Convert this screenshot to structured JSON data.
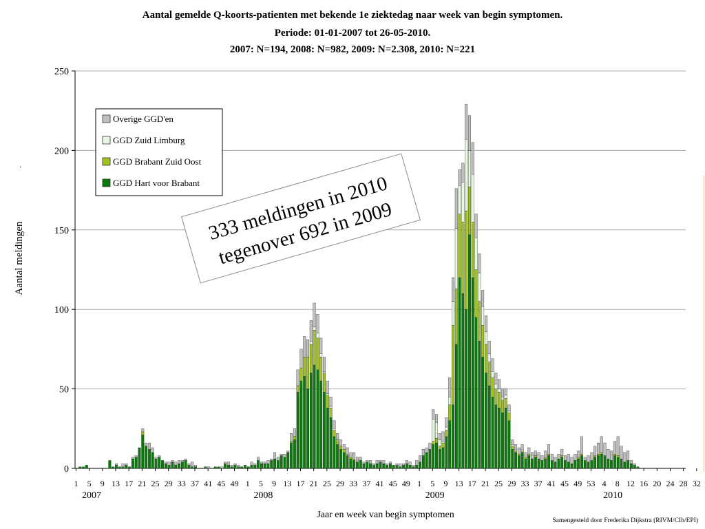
{
  "title_lines": [
    "Aantal gemelde Q-koorts-patienten met bekende 1e ziektedag naar week van begin symptomen.",
    "Periode: 01-01-2007 tot 26-05-2010.",
    "2007: N=194, 2008: N=982, 2009: N=2.308, 2010: N=221"
  ],
  "credit": "Samengesteld door Frederika Dijkstra (RIVM/CIb/EPI)",
  "annotation": [
    "333 meldingen in 2010",
    "tegenover 692 in 2009"
  ],
  "colors": {
    "hart_voor_brabant": "#0a7a0a",
    "brabant_zuid_oost": "#9fc21e",
    "zuid_limburg": "#e6f7e2",
    "overige": "#c0c0c0",
    "gridline": "#a9a9a9"
  },
  "chart_data": {
    "type": "bar",
    "stacked": true,
    "title": "Aantal gemelde Q-koorts-patienten met bekende 1e ziektedag naar week van begin symptomen.",
    "xlabel": "Jaar en week van begin symptomen",
    "ylabel": "Aantal meldingen",
    "ylim": [
      0,
      250
    ],
    "yticks": [
      0,
      50,
      100,
      150,
      200,
      250
    ],
    "grid": true,
    "legend_position": "top-left",
    "year_labels": [
      {
        "label": "2007",
        "week_index": 0
      },
      {
        "label": "2008",
        "week_index": 52
      },
      {
        "label": "2009",
        "week_index": 104
      },
      {
        "label": "2010",
        "week_index": 160
      }
    ],
    "week_tick_labels": [
      "1",
      "5",
      "9",
      "13",
      "17",
      "21",
      "25",
      "29",
      "33",
      "37",
      "41",
      "45",
      "49",
      "1",
      "5",
      "9",
      "13",
      "17",
      "21",
      "25",
      "29",
      "33",
      "37",
      "41",
      "45",
      "49",
      "1",
      "5",
      "9",
      "13",
      "17",
      "21",
      "25",
      "29",
      "33",
      "37",
      "41",
      "45",
      "49",
      "53",
      "4",
      "8",
      "12",
      "16",
      "20",
      "24",
      "28",
      "32"
    ],
    "series_names": [
      "GGD Hart voor Brabant",
      "GGD Brabant Zuid Oost",
      "GGD Zuid Limburg",
      "Overige GGD'en"
    ],
    "legend_order": [
      "Overige GGD'en",
      "GGD Zuid Limburg",
      "GGD Brabant Zuid Oost",
      "GGD Hart voor Brabant"
    ],
    "stacks": [
      [
        0,
        0,
        0,
        0
      ],
      [
        1,
        0,
        0,
        0
      ],
      [
        1,
        0,
        0,
        0
      ],
      [
        2,
        0,
        0,
        0
      ],
      [
        0,
        0,
        0,
        0
      ],
      [
        0,
        0,
        0,
        0
      ],
      [
        0,
        0,
        0,
        0
      ],
      [
        0,
        0,
        0,
        0
      ],
      [
        0,
        0,
        0,
        0
      ],
      [
        0,
        0,
        0,
        0
      ],
      [
        5,
        0,
        0,
        0
      ],
      [
        1,
        0,
        0,
        0
      ],
      [
        2,
        0,
        0,
        1
      ],
      [
        1,
        0,
        0,
        0
      ],
      [
        1,
        0,
        0,
        2
      ],
      [
        2,
        0,
        0,
        1
      ],
      [
        1,
        0,
        0,
        0
      ],
      [
        6,
        0,
        0,
        1
      ],
      [
        7,
        0,
        0,
        1
      ],
      [
        13,
        0,
        0,
        0
      ],
      [
        21,
        2,
        0,
        2
      ],
      [
        14,
        0,
        0,
        2
      ],
      [
        12,
        0,
        0,
        4
      ],
      [
        10,
        0,
        0,
        3
      ],
      [
        6,
        0,
        0,
        1
      ],
      [
        7,
        0,
        0,
        1
      ],
      [
        5,
        0,
        0,
        0
      ],
      [
        3,
        0,
        0,
        1
      ],
      [
        2,
        0,
        0,
        2
      ],
      [
        4,
        0,
        0,
        1
      ],
      [
        2,
        0,
        0,
        2
      ],
      [
        3,
        0,
        0,
        2
      ],
      [
        4,
        0,
        0,
        1
      ],
      [
        5,
        0,
        0,
        1
      ],
      [
        2,
        0,
        0,
        1
      ],
      [
        1,
        0,
        0,
        3
      ],
      [
        1,
        0,
        0,
        1
      ],
      [
        0,
        0,
        0,
        0
      ],
      [
        0,
        0,
        0,
        0
      ],
      [
        1,
        0,
        0,
        0
      ],
      [
        0,
        0,
        0,
        1
      ],
      [
        0,
        0,
        0,
        0
      ],
      [
        1,
        0,
        0,
        0
      ],
      [
        1,
        0,
        0,
        0
      ],
      [
        0,
        0,
        0,
        1
      ],
      [
        3,
        0,
        0,
        1
      ],
      [
        2,
        0,
        0,
        2
      ],
      [
        1,
        0,
        0,
        1
      ],
      [
        2,
        0,
        0,
        1
      ],
      [
        1,
        0,
        0,
        1
      ],
      [
        1,
        0,
        0,
        0
      ],
      [
        2,
        0,
        0,
        0
      ],
      [
        1,
        0,
        0,
        0
      ],
      [
        2,
        0,
        0,
        2
      ],
      [
        2,
        0,
        0,
        1
      ],
      [
        5,
        0,
        0,
        2
      ],
      [
        3,
        0,
        0,
        1
      ],
      [
        3,
        0,
        0,
        1
      ],
      [
        3,
        0,
        0,
        2
      ],
      [
        5,
        0,
        0,
        1
      ],
      [
        6,
        0,
        0,
        4
      ],
      [
        5,
        0,
        0,
        2
      ],
      [
        8,
        0,
        0,
        1
      ],
      [
        7,
        0,
        0,
        2
      ],
      [
        10,
        0,
        0,
        1
      ],
      [
        16,
        1,
        0,
        5
      ],
      [
        18,
        2,
        0,
        5
      ],
      [
        48,
        4,
        0,
        10
      ],
      [
        55,
        8,
        0,
        12
      ],
      [
        58,
        12,
        0,
        13
      ],
      [
        50,
        20,
        0,
        11
      ],
      [
        60,
        18,
        2,
        13
      ],
      [
        65,
        22,
        2,
        15
      ],
      [
        62,
        20,
        3,
        12
      ],
      [
        55,
        15,
        2,
        10
      ],
      [
        48,
        12,
        1,
        9
      ],
      [
        38,
        8,
        1,
        8
      ],
      [
        32,
        6,
        1,
        6
      ],
      [
        20,
        4,
        1,
        5
      ],
      [
        15,
        3,
        0,
        4
      ],
      [
        12,
        2,
        0,
        4
      ],
      [
        10,
        2,
        0,
        3
      ],
      [
        8,
        1,
        0,
        4
      ],
      [
        6,
        1,
        0,
        3
      ],
      [
        5,
        1,
        0,
        4
      ],
      [
        4,
        0,
        0,
        3
      ],
      [
        5,
        0,
        0,
        2
      ],
      [
        3,
        0,
        0,
        1
      ],
      [
        4,
        0,
        0,
        1
      ],
      [
        3,
        0,
        0,
        2
      ],
      [
        2,
        0,
        0,
        1
      ],
      [
        3,
        0,
        0,
        2
      ],
      [
        4,
        0,
        0,
        1
      ],
      [
        3,
        0,
        0,
        2
      ],
      [
        2,
        0,
        0,
        1
      ],
      [
        3,
        0,
        0,
        1
      ],
      [
        2,
        0,
        0,
        0
      ],
      [
        2,
        0,
        0,
        1
      ],
      [
        1,
        0,
        0,
        2
      ],
      [
        2,
        0,
        0,
        1
      ],
      [
        3,
        0,
        0,
        2
      ],
      [
        2,
        0,
        0,
        2
      ],
      [
        1,
        0,
        0,
        1
      ],
      [
        2,
        0,
        0,
        3
      ],
      [
        4,
        0,
        0,
        4
      ],
      [
        8,
        0,
        0,
        4
      ],
      [
        10,
        0,
        0,
        3
      ],
      [
        12,
        0,
        0,
        4
      ],
      [
        15,
        2,
        14,
        6
      ],
      [
        16,
        3,
        10,
        5
      ],
      [
        12,
        2,
        4,
        4
      ],
      [
        13,
        3,
        1,
        6
      ],
      [
        20,
        4,
        2,
        6
      ],
      [
        30,
        10,
        5,
        12
      ],
      [
        40,
        50,
        15,
        15
      ],
      [
        78,
        35,
        38,
        25
      ],
      [
        120,
        40,
        18,
        10
      ],
      [
        110,
        45,
        25,
        12
      ],
      [
        100,
        62,
        45,
        22
      ],
      [
        147,
        30,
        23,
        22
      ],
      [
        120,
        35,
        30,
        20
      ],
      [
        95,
        30,
        20,
        15
      ],
      [
        80,
        25,
        18,
        12
      ],
      [
        70,
        20,
        12,
        10
      ],
      [
        60,
        18,
        8,
        10
      ],
      [
        52,
        15,
        5,
        8
      ],
      [
        45,
        12,
        4,
        8
      ],
      [
        40,
        10,
        3,
        7
      ],
      [
        38,
        10,
        2,
        6
      ],
      [
        35,
        8,
        2,
        5
      ],
      [
        38,
        6,
        2,
        4
      ],
      [
        30,
        5,
        1,
        4
      ],
      [
        12,
        2,
        1,
        3
      ],
      [
        10,
        1,
        1,
        3
      ],
      [
        8,
        1,
        0,
        4
      ],
      [
        10,
        1,
        1,
        3
      ],
      [
        6,
        1,
        0,
        3
      ],
      [
        8,
        1,
        0,
        4
      ],
      [
        6,
        0,
        0,
        4
      ],
      [
        7,
        1,
        0,
        3
      ],
      [
        6,
        0,
        0,
        4
      ],
      [
        5,
        0,
        0,
        3
      ],
      [
        6,
        1,
        0,
        4
      ],
      [
        8,
        1,
        0,
        6
      ],
      [
        5,
        0,
        0,
        4
      ],
      [
        4,
        0,
        0,
        3
      ],
      [
        6,
        0,
        0,
        3
      ],
      [
        7,
        1,
        0,
        4
      ],
      [
        5,
        0,
        0,
        3
      ],
      [
        4,
        0,
        0,
        5
      ],
      [
        3,
        0,
        0,
        4
      ],
      [
        5,
        0,
        0,
        4
      ],
      [
        6,
        1,
        0,
        4
      ],
      [
        8,
        1,
        0,
        11
      ],
      [
        5,
        0,
        0,
        2
      ],
      [
        4,
        0,
        0,
        4
      ],
      [
        5,
        0,
        0,
        5
      ],
      [
        7,
        1,
        0,
        6
      ],
      [
        8,
        1,
        0,
        7
      ],
      [
        9,
        1,
        0,
        10
      ],
      [
        8,
        0,
        0,
        8
      ],
      [
        6,
        0,
        0,
        6
      ],
      [
        5,
        0,
        0,
        6
      ],
      [
        8,
        1,
        0,
        8
      ],
      [
        7,
        1,
        0,
        12
      ],
      [
        6,
        0,
        0,
        8
      ],
      [
        4,
        0,
        0,
        6
      ],
      [
        5,
        0,
        0,
        6
      ],
      [
        3,
        0,
        0,
        2
      ],
      [
        2,
        0,
        0,
        1
      ],
      [
        1,
        0,
        0,
        0
      ],
      [
        0,
        0,
        0,
        0
      ],
      [
        0,
        0,
        0,
        0
      ],
      [
        0,
        0,
        0,
        0
      ],
      [
        0,
        0,
        0,
        0
      ],
      [
        0,
        0,
        0,
        0
      ],
      [
        0,
        0,
        0,
        0
      ],
      [
        0,
        0,
        0,
        0
      ],
      [
        0,
        0,
        0,
        0
      ],
      [
        0,
        0,
        0,
        0
      ],
      [
        0,
        0,
        0,
        0
      ],
      [
        0,
        0,
        0,
        0
      ],
      [
        0,
        0,
        0,
        0
      ],
      [
        0,
        0,
        0,
        0
      ],
      [
        0,
        0,
        0,
        0
      ]
    ]
  }
}
